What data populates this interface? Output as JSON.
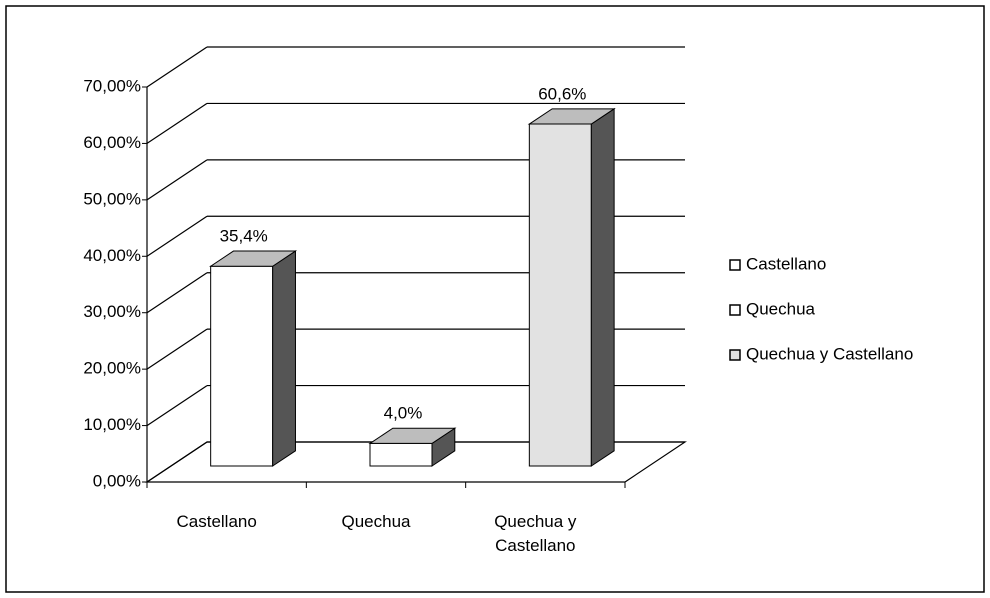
{
  "chart_data": {
    "type": "bar3d",
    "categories": [
      "Castellano",
      "Quechua",
      "Quechua y Castellano"
    ],
    "values": [
      35.4,
      4.0,
      60.6
    ],
    "value_labels": [
      "35,4%",
      "4,0%",
      "60,6%"
    ],
    "colors": [
      "#ffffff",
      "#ffffff",
      "#e2e2e2"
    ],
    "ylim": [
      0,
      70
    ],
    "yticks": [
      {
        "value": 0,
        "label": "0,00%"
      },
      {
        "value": 10,
        "label": "10,00%"
      },
      {
        "value": 20,
        "label": "20,00%"
      },
      {
        "value": 30,
        "label": "30,00%"
      },
      {
        "value": 40,
        "label": "40,00%"
      },
      {
        "value": 50,
        "label": "50,00%"
      },
      {
        "value": 60,
        "label": "60,00%"
      },
      {
        "value": 70,
        "label": "70,00%"
      }
    ],
    "grid": true,
    "legend": "right"
  }
}
